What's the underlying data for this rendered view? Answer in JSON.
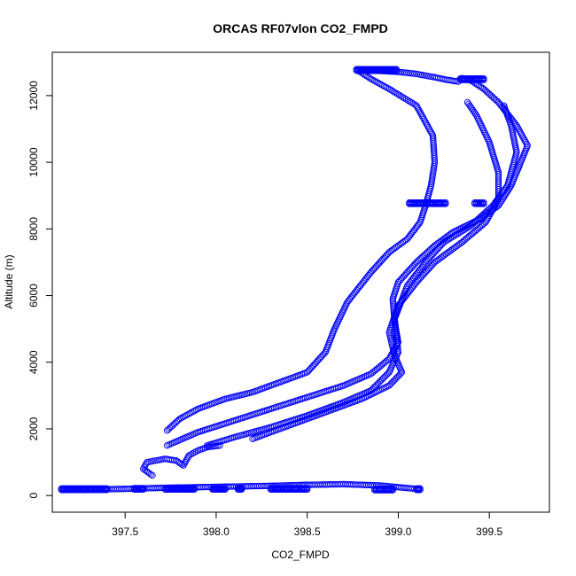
{
  "chart_data": {
    "type": "scatter",
    "title": "ORCAS RF07vlon CO2_FMPD",
    "xlabel": "CO2_FMPD",
    "ylabel": "Altitude (m)",
    "xlim": [
      397.1,
      399.83
    ],
    "ylim": [
      -500,
      13300
    ],
    "xticks": [
      397.5,
      398.0,
      398.5,
      399.0,
      399.5
    ],
    "xtick_labels": [
      "397.5",
      "398.0",
      "398.5",
      "399.0",
      "399.5"
    ],
    "yticks": [
      0,
      2000,
      4000,
      6000,
      8000,
      10000,
      12000
    ],
    "ytick_labels": [
      "0",
      "2000",
      "4000",
      "6000",
      "8000",
      "10000",
      "12000"
    ],
    "marker": "open-circle",
    "color": "#0000ff",
    "series_paths": [
      {
        "x": [
          397.73,
          397.8,
          397.9,
          398.05,
          398.2,
          398.35,
          398.5,
          398.6,
          398.65,
          398.72,
          398.85,
          398.95,
          399.05,
          399.12,
          399.15,
          399.18,
          399.2,
          399.19,
          399.1,
          398.95,
          398.85,
          398.78
        ],
        "y": [
          1950,
          2300,
          2600,
          2900,
          3100,
          3400,
          3700,
          4300,
          5000,
          5800,
          6700,
          7300,
          7700,
          8200,
          8700,
          9300,
          10000,
          10800,
          11700,
          12200,
          12500,
          12750
        ]
      },
      {
        "x": [
          398.8,
          398.9,
          399.0,
          399.1,
          399.2,
          399.27,
          399.33
        ],
        "y": [
          12750,
          12740,
          12710,
          12650,
          12550,
          12470,
          12420
        ]
      },
      {
        "x": [
          397.73,
          397.9,
          398.1,
          398.3,
          398.5,
          398.7,
          398.85,
          398.95,
          399.0,
          398.98,
          398.97,
          399.0,
          399.1,
          399.2,
          399.3,
          399.45,
          399.55,
          399.62,
          399.71,
          399.65,
          399.55,
          399.47,
          399.4,
          399.35
        ],
        "y": [
          1500,
          1900,
          2250,
          2600,
          2950,
          3300,
          3650,
          4100,
          4600,
          5200,
          5900,
          6400,
          7000,
          7500,
          7900,
          8300,
          8700,
          9300,
          10500,
          11100,
          11800,
          12200,
          12450,
          12520
        ]
      },
      {
        "x": [
          397.95,
          398.1,
          398.3,
          398.5,
          398.7,
          398.85,
          398.95,
          399.0,
          398.98,
          399.05,
          399.15,
          399.25,
          399.4,
          399.52,
          399.6,
          399.65,
          399.62,
          399.58
        ],
        "y": [
          1500,
          1750,
          2050,
          2400,
          2800,
          3150,
          3700,
          4300,
          5300,
          6300,
          7000,
          7600,
          8100,
          8700,
          9300,
          10300,
          11100,
          11700
        ]
      },
      {
        "x": [
          398.2,
          398.4,
          398.6,
          398.8,
          398.95,
          399.02,
          398.98,
          398.95,
          399.0,
          399.1,
          399.2,
          399.35,
          399.48,
          399.55,
          399.55,
          399.5,
          399.43,
          399.38
        ],
        "y": [
          1700,
          2100,
          2500,
          2900,
          3300,
          3700,
          4200,
          4900,
          5700,
          6400,
          7000,
          7600,
          8200,
          8900,
          9700,
          10600,
          11400,
          11800
        ]
      },
      {
        "x": [
          397.65,
          397.6,
          397.62,
          397.72,
          397.78,
          397.82,
          397.85,
          397.9,
          397.95,
          398.02
        ],
        "y": [
          600,
          800,
          1000,
          1100,
          1050,
          900,
          1200,
          1350,
          1450,
          1500
        ]
      },
      {
        "x": [
          397.15,
          397.3,
          397.5,
          397.7,
          397.9,
          398.1,
          398.3,
          398.5,
          398.7,
          398.9,
          399.1
        ],
        "y": [
          170,
          180,
          200,
          230,
          250,
          270,
          290,
          320,
          340,
          300,
          200
        ]
      }
    ],
    "clusters": [
      {
        "x_range": [
          398.77,
          398.99
        ],
        "y": 12750
      },
      {
        "x_range": [
          399.34,
          399.47
        ],
        "y": 12470
      },
      {
        "x_range": [
          399.06,
          399.26
        ],
        "y": 8750
      },
      {
        "x_range": [
          399.42,
          399.47
        ],
        "y": 8750
      },
      {
        "x_range": [
          397.15,
          397.4
        ],
        "y": 170
      },
      {
        "x_range": [
          397.55,
          397.6
        ],
        "y": 180
      },
      {
        "x_range": [
          397.72,
          397.88
        ],
        "y": 180
      },
      {
        "x_range": [
          397.98,
          398.05
        ],
        "y": 180
      },
      {
        "x_range": [
          398.12,
          398.14
        ],
        "y": 180
      },
      {
        "x_range": [
          398.3,
          398.5
        ],
        "y": 180
      },
      {
        "x_range": [
          398.87,
          398.97
        ],
        "y": 160
      },
      {
        "x_range": [
          399.1,
          399.12
        ],
        "y": 170
      }
    ]
  }
}
